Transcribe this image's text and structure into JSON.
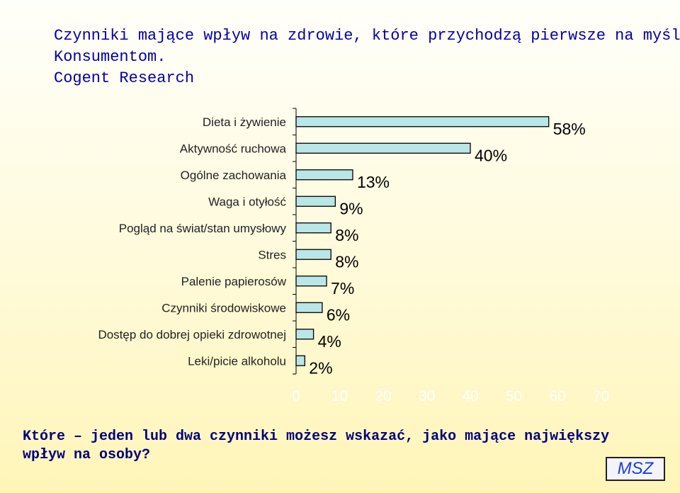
{
  "title": {
    "line1": "Czynniki mające wpływ na zdrowie, które przychodzą pierwsze na myśl",
    "line2": "Konsumentom.",
    "line3": "Cogent Research"
  },
  "chart_data": {
    "type": "bar",
    "orientation": "horizontal",
    "categories": [
      "Dieta i żywienie",
      "Aktywność ruchowa",
      "Ogólne zachowania",
      "Waga i otyłość",
      "Pogląd na świat/stan umysłowy",
      "Stres",
      "Palenie papierosów",
      "Czynniki środowiskowe",
      "Dostęp do dobrej opieki zdrowotnej",
      "Leki/picie alkoholu"
    ],
    "values": [
      58,
      40,
      13,
      9,
      8,
      8,
      7,
      6,
      4,
      2
    ],
    "data_labels": [
      "58%",
      "40%",
      "13%",
      "9%",
      "8%",
      "8%",
      "7%",
      "6%",
      "4%",
      "2%"
    ],
    "xlim": [
      0,
      70
    ],
    "x_ticks": [
      "0",
      "10",
      "20",
      "30",
      "40",
      "50",
      "60",
      "70"
    ],
    "grid": false,
    "colors": {
      "bar_fill": "#b9e6e6",
      "bar_stroke": "#000000",
      "tick_label": "#ffffff"
    }
  },
  "question": "Które – jeden lub dwa czynniki możesz wskazać, jako mające największy wpływ na osoby?",
  "badge": "MSZ"
}
